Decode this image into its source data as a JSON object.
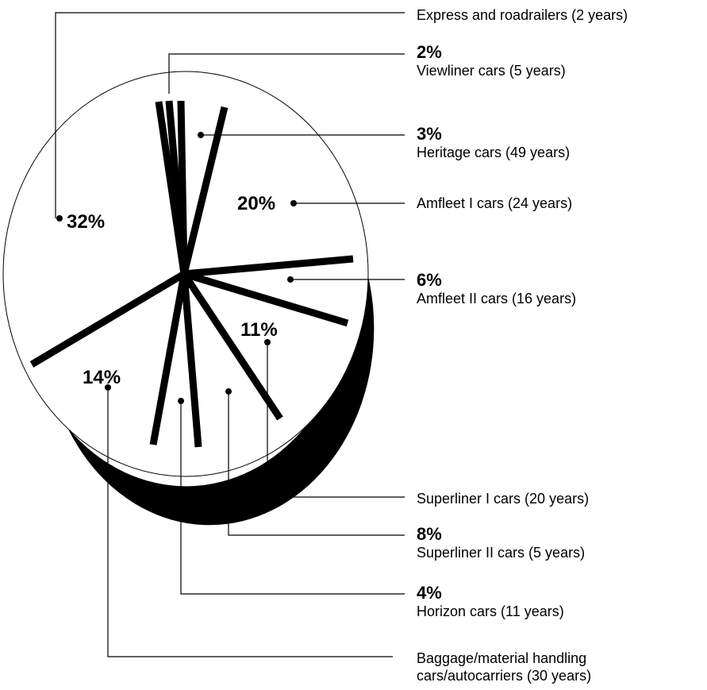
{
  "chart_data": {
    "type": "pie",
    "title": "",
    "slices": [
      {
        "label": "Amfleet I cars (24 years)",
        "value": 20,
        "percent_label": "20%"
      },
      {
        "label": "Amfleet II cars (16 years)",
        "value": 6,
        "percent_label": "6%"
      },
      {
        "label": "Superliner I cars (20 years)",
        "value": 11,
        "percent_label": "11%"
      },
      {
        "label": "Superliner II cars (5 years)",
        "value": 8,
        "percent_label": "8%"
      },
      {
        "label": "Horizon cars (11 years)",
        "value": 4,
        "percent_label": "4%"
      },
      {
        "label": "Baggage/material handling cars/autocarriers (30 years)",
        "value": 14,
        "percent_label": "14%"
      },
      {
        "label": "Express and roadrailers (2 years)",
        "value": 32,
        "percent_label": "32%"
      },
      {
        "label": "Viewliner cars (5 years)",
        "value": 2,
        "percent_label": "2%"
      },
      {
        "label": "Heritage cars (49 years)",
        "value": 3,
        "percent_label": "3%"
      }
    ]
  },
  "labels": {
    "express": {
      "name": "Express and roadrailers (2 years)"
    },
    "viewliner": {
      "pct": "2%",
      "name": "Viewliner cars (5 years)"
    },
    "heritage": {
      "pct": "3%",
      "name": "Heritage cars (49 years)"
    },
    "amfleet1": {
      "pct": "20%",
      "name": "Amfleet I cars (24 years)"
    },
    "amfleet2": {
      "pct": "6%",
      "name": "Amfleet II cars (16 years)"
    },
    "superliner1": {
      "pct": "11%",
      "name": "Superliner I cars (20 years)"
    },
    "superliner2": {
      "pct": "8%",
      "name": "Superliner II cars (5 years)"
    },
    "horizon": {
      "pct": "4%",
      "name": "Horizon cars (11 years)"
    },
    "baggage": {
      "pct": "14%",
      "name_line1": "Baggage/material handling",
      "name_line2": "cars/autocarriers (30 years)"
    },
    "express_pct": "32%"
  }
}
